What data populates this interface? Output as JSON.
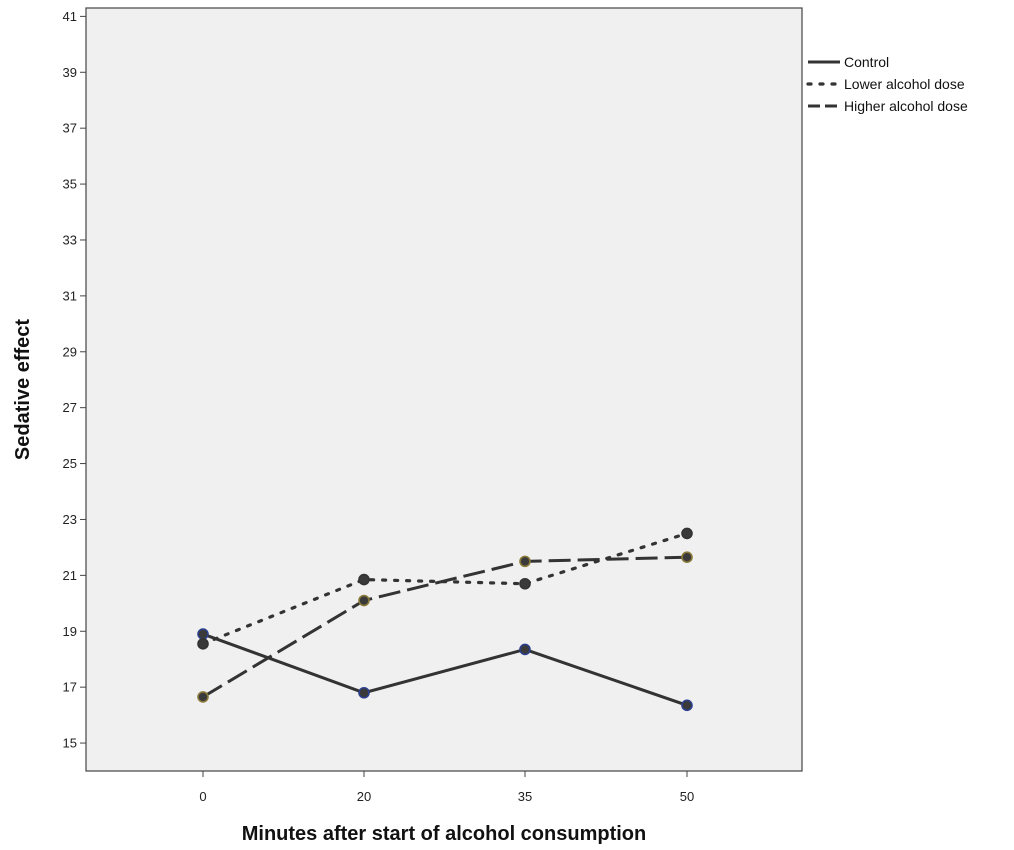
{
  "chart_data": {
    "type": "line",
    "title": "",
    "xlabel": "Minutes after start of alcohol consumption",
    "ylabel": "Sedative effect",
    "categories": [
      "0",
      "20",
      "35",
      "50"
    ],
    "ylim": [
      14,
      41.3
    ],
    "yticks": [
      15,
      17,
      19,
      21,
      23,
      25,
      27,
      29,
      31,
      33,
      35,
      37,
      39,
      41
    ],
    "grid": false,
    "legend_position": "top-right-outside",
    "series": [
      {
        "name": "Control",
        "values": [
          18.9,
          16.8,
          18.35,
          16.35
        ],
        "line_style": "solid",
        "marker_color": "#2b3f8c"
      },
      {
        "name": "Lower alcohol dose",
        "values": [
          18.55,
          20.85,
          20.7,
          22.5
        ],
        "line_style": "dotted",
        "marker_color": "#333333"
      },
      {
        "name": "Higher alcohol dose",
        "values": [
          16.65,
          20.1,
          21.5,
          21.65
        ],
        "line_style": "dashed",
        "marker_color": "#8a7a3a"
      }
    ],
    "colors": {
      "line": "#333333",
      "plot_bg": "#f0f0f0",
      "frame": "#444444"
    }
  }
}
